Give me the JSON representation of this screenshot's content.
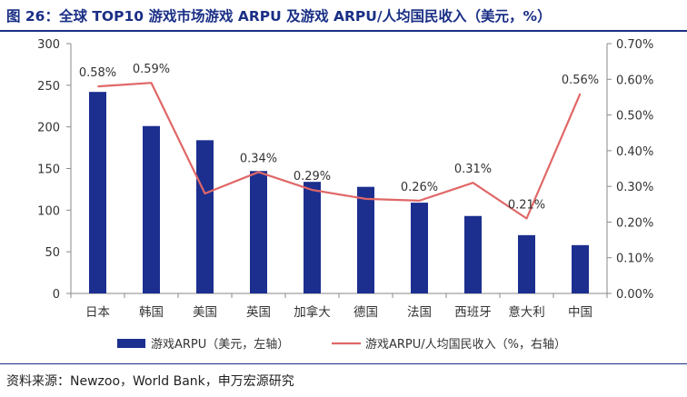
{
  "figure": {
    "title": "图 26：全球 TOP10 游戏市场游戏 ARPU 及游戏 ARPU/人均国民收入（美元，%）",
    "source": "资料来源：Newzoo，World Bank，申万宏源研究"
  },
  "colors": {
    "title": "#1a2f85",
    "bar": "#1c2f8f",
    "line": "#e06767",
    "axis": "#8a8a8a",
    "text": "#333333"
  },
  "chart_data": {
    "type": "bar+line",
    "categories": [
      "日本",
      "韩国",
      "美国",
      "英国",
      "加拿大",
      "德国",
      "法国",
      "西班牙",
      "意大利",
      "中国"
    ],
    "series": [
      {
        "name": "游戏ARPU（美元，左轴）",
        "type": "bar",
        "axis": "left",
        "values": [
          242,
          201,
          184,
          147,
          134,
          128,
          109,
          93,
          70,
          58
        ]
      },
      {
        "name": "游戏ARPU/人均国民收入（%，右轴）",
        "type": "line",
        "axis": "right",
        "values": [
          0.58,
          0.59,
          0.28,
          0.34,
          0.29,
          0.265,
          0.26,
          0.31,
          0.21,
          0.56
        ]
      }
    ],
    "data_labels": [
      {
        "index": 0,
        "text": "0.58%"
      },
      {
        "index": 1,
        "text": "0.59%"
      },
      {
        "index": 3,
        "text": "0.34%"
      },
      {
        "index": 4,
        "text": "0.29%"
      },
      {
        "index": 6,
        "text": "0.26%"
      },
      {
        "index": 7,
        "text": "0.31%"
      },
      {
        "index": 8,
        "text": "0.21%"
      },
      {
        "index": 9,
        "text": "0.56%"
      }
    ],
    "left_axis": {
      "range": [
        0,
        300
      ],
      "ticks": [
        0,
        50,
        100,
        150,
        200,
        250,
        300
      ],
      "tick_labels": [
        "0",
        "50",
        "100",
        "150",
        "200",
        "250",
        "300"
      ]
    },
    "right_axis": {
      "range": [
        0,
        0.7
      ],
      "ticks": [
        0,
        0.1,
        0.2,
        0.3,
        0.4,
        0.5,
        0.6,
        0.7
      ],
      "tick_labels": [
        "0.00%",
        "0.10%",
        "0.20%",
        "0.30%",
        "0.40%",
        "0.50%",
        "0.60%",
        "0.70%"
      ]
    },
    "legend_position": "bottom",
    "grid": false
  }
}
